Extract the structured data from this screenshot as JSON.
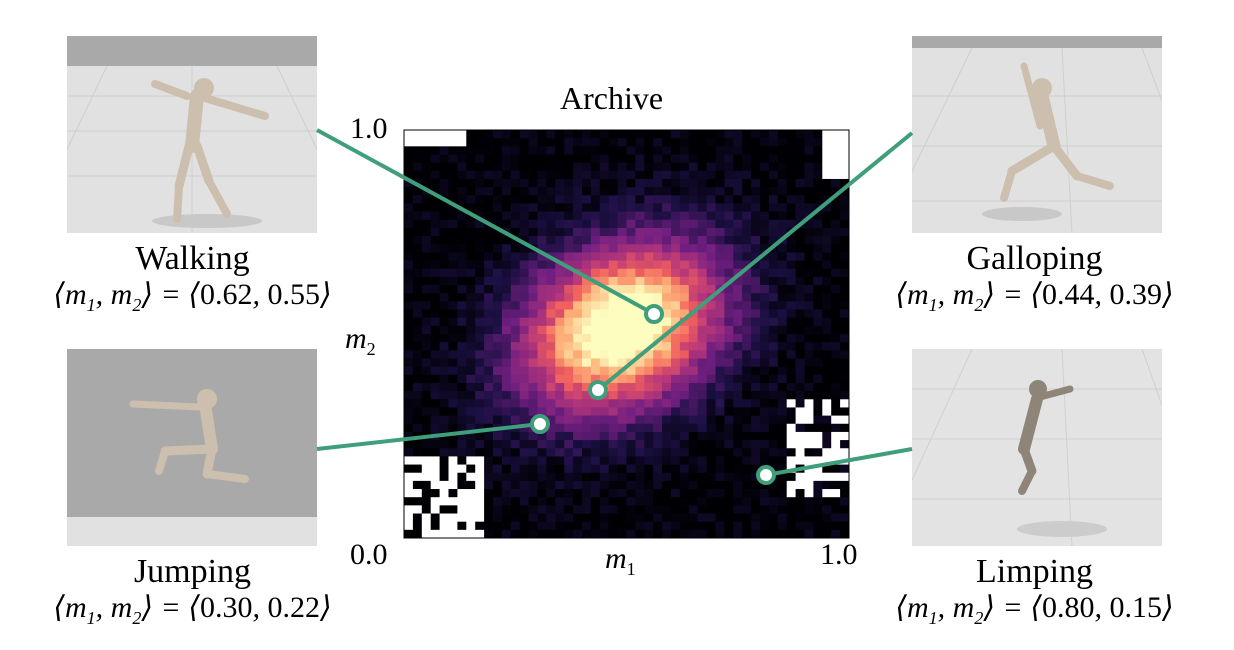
{
  "archive": {
    "title": "Archive",
    "x_label": "m",
    "x_label_sub": "1",
    "y_label": "m",
    "y_label_sub": "2",
    "x_min_label": "0.0",
    "x_max_label": "1.0",
    "y_max_label": "1.0",
    "line_color": "#3f9f7b",
    "colormap": "magma"
  },
  "gaits": [
    {
      "name": "Walking",
      "coord_prefix": "⟨m",
      "m1": "0.62",
      "m2": "0.55"
    },
    {
      "name": "Jumping",
      "coord_prefix": "⟨m",
      "m1": "0.30",
      "m2": "0.22"
    },
    {
      "name": "Galloping",
      "coord_prefix": "⟨m",
      "m1": "0.44",
      "m2": "0.39"
    },
    {
      "name": "Limping",
      "coord_prefix": "⟨m",
      "m1": "0.80",
      "m2": "0.15"
    }
  ]
}
